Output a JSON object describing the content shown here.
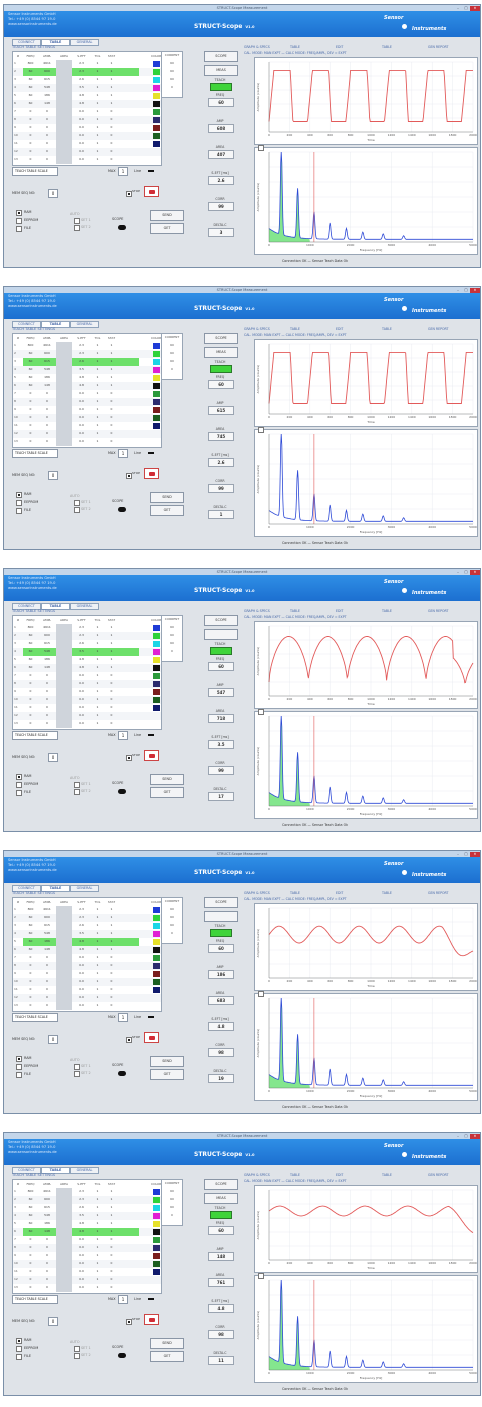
{
  "window": {
    "title": "STRUCT-Scope Measurement",
    "controls": [
      "–",
      "□",
      "✕"
    ]
  },
  "header": {
    "lines": [
      "Sensor Instruments GmbH",
      "Tel.: +49 (0) 8544 97 19-0",
      "www.sensorinstruments.de"
    ],
    "app_title": "STRUCT-Scope",
    "app_version": "V1.0",
    "brand": "Sensor",
    "brand_sub": "Instruments"
  },
  "left_tabs": [
    "CONNECT",
    "TABLE",
    "GENERAL"
  ],
  "section_title": "TEACH TABLE SETTINGS",
  "table_headers": [
    "#",
    "FREQ",
    "AMPL",
    "AREA",
    "S-EFT",
    "TOL",
    "STAT",
    "COLOR"
  ],
  "side_column": {
    "label": "CURRENT",
    "values": [
      "60",
      "60",
      "60",
      "0"
    ]
  },
  "colors": [
    "#1e3bd6",
    "#2fd23a",
    "#1bd6e6",
    "#e01fd3",
    "#e6e12a",
    "#111111",
    "#2b9a3b",
    "#2b2b6e",
    "#7a1d1d",
    "#1b5e20",
    "#101a6c"
  ],
  "buttons": {
    "send": "SEND",
    "get": "GET",
    "teach": "TEACH",
    "go": "GO",
    "prev": "PREV",
    "save": "SAVE",
    "clear": "CLEAR"
  },
  "controls": {
    "select_label": "TEACH TABLE SCALE",
    "max_label": "MAX",
    "max_val": "1",
    "line_label": "Line",
    "mem_label": "MEM SEQ NO:",
    "mem_val": "0",
    "stop_label": "STOP",
    "scope_label": "SCOPE",
    "radios": [
      "RAM",
      "EEPROM",
      "FILE"
    ],
    "mode_opts": [
      "SET 1",
      "SET 2"
    ],
    "auto_label": "AUTO"
  },
  "right_tabs": [
    "GRAPH & SPECS",
    "TABLE",
    "EDIT",
    "TABLE",
    "GEN REPORT"
  ],
  "right_sub": "CAL. MODE: MAN EXPT — CALC MODE: FREQ/AMPL, DEV = EXPT",
  "time_plot": {
    "ylabel": "Amplitude (counts)",
    "xlabel": "Time",
    "x_ticks": [
      "0",
      "200",
      "400",
      "600",
      "800",
      "1000",
      "1200",
      "1400",
      "1600",
      "1800",
      "2000"
    ]
  },
  "fft_plot": {
    "ylabel": "Amplitude (counts)",
    "xlabel": "Frequency [Hz]",
    "x_ticks": [
      "0",
      "1000",
      "2000",
      "3000",
      "4000",
      "5000"
    ]
  },
  "shots": [
    {
      "active_row": 2,
      "side_vals": [
        "60",
        "60",
        "60",
        "0"
      ],
      "metrics": {
        "FREQ": "60",
        "AMP": "608",
        "AREA": "407",
        "S-EFT [ms]": "2.6",
        "CORR": "99",
        "DELTA-C": "3"
      },
      "seq_btns": [
        "SCOPE",
        "MEAS"
      ],
      "conn": "Connection OK — Sensor Teach Data Ok",
      "wave": "square",
      "fft_fill": true
    },
    {
      "active_row": 3,
      "side_vals": [
        "60",
        "60",
        "60",
        "0"
      ],
      "metrics": {
        "FREQ": "60",
        "AMP": "615",
        "AREA": "745",
        "S-EFT [ms]": "2.6",
        "CORR": "99",
        "DELTA-C": "1"
      },
      "seq_btns": [
        "SCOPE",
        "MEAS"
      ],
      "conn": "Connection OK — Sensor Teach Data Ok",
      "wave": "square",
      "fft_fill": false
    },
    {
      "active_row": 4,
      "side_vals": [
        "60",
        "60",
        "60",
        "0"
      ],
      "metrics": {
        "FREQ": "60",
        "AMP": "547",
        "AREA": "718",
        "S-EFT [ms]": "3.5",
        "CORR": "99",
        "DELTA-C": "17"
      },
      "seq_btns": [
        "SCOPE",
        ""
      ],
      "conn": "Connection OK — Sensor Teach Data Ok",
      "wave": "rounded",
      "fft_fill": true
    },
    {
      "active_row": 5,
      "side_vals": [
        "60",
        "60",
        "60",
        "0"
      ],
      "metrics": {
        "FREQ": "60",
        "AMP": "186",
        "AREA": "683",
        "S-EFT [ms]": "4.8",
        "CORR": "98",
        "DELTA-C": "19"
      },
      "seq_btns": [
        "SCOPE",
        ""
      ],
      "conn": "Connection OK — Sensor Teach Data Ok",
      "wave": "wavy",
      "fft_fill": true
    },
    {
      "active_row": 6,
      "side_vals": [
        "60",
        "60",
        "60",
        "0"
      ],
      "metrics": {
        "FREQ": "60",
        "AMP": "148",
        "AREA": "761",
        "S-EFT [ms]": "4.8",
        "CORR": "98",
        "DELTA-C": "11"
      },
      "seq_btns": [
        "SCOPE",
        "MEAS"
      ],
      "conn": "Connection OK — Sensor Teach Data Ok",
      "wave": "flat",
      "fft_fill": true
    }
  ],
  "table_rows": [
    [
      "1",
      "800",
      "4611",
      "",
      "2.3",
      "1",
      "1"
    ],
    [
      "2",
      "60",
      "600",
      "",
      "2.3",
      "1",
      "1"
    ],
    [
      "3",
      "60",
      "615",
      "",
      "2.6",
      "1",
      "1"
    ],
    [
      "4",
      "60",
      "548",
      "",
      "3.5",
      "1",
      "1"
    ],
    [
      "5",
      "60",
      "186",
      "",
      "4.8",
      "1",
      "1"
    ],
    [
      "6",
      "60",
      "148",
      "",
      "4.8",
      "1",
      "1"
    ],
    [
      "7",
      "0",
      "0",
      "",
      "0.0",
      "1",
      "0"
    ],
    [
      "8",
      "0",
      "0",
      "",
      "0.0",
      "1",
      "0"
    ],
    [
      "9",
      "0",
      "0",
      "",
      "0.0",
      "1",
      "0"
    ],
    [
      "10",
      "0",
      "0",
      "",
      "0.0",
      "1",
      "0"
    ],
    [
      "11",
      "0",
      "0",
      "",
      "0.0",
      "1",
      "0"
    ],
    [
      "12",
      "0",
      "0",
      "",
      "0.0",
      "1",
      "0"
    ],
    [
      "13",
      "0",
      "0",
      "",
      "0.0",
      "1",
      "0"
    ]
  ]
}
